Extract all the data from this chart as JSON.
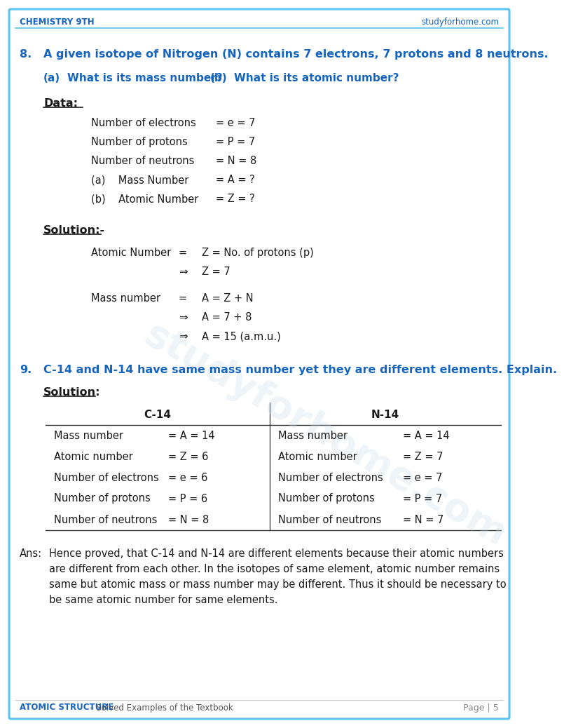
{
  "header_left": "CHEMISTRY 9TH",
  "header_right": "studyforhome.com",
  "footer_left_blue": "ATOMIC STRUCTURE",
  "footer_left_black": " – Solved Examples of the Textbook",
  "footer_right": "Page | 5",
  "bg_color": "#ffffff",
  "border_color": "#5bc4f0",
  "header_line_color": "#5bc4f0",
  "footer_line_color": "#cccccc",
  "text_color": "#1a1a1a",
  "blue_color": "#1565c0",
  "blue_header": "#1565c0",
  "watermark_color": "#c8dce8",
  "q8_num": "8.",
  "q8_text": "A given isotope of Nitrogen (N) contains 7 electrons, 7 protons and 8 neutrons.",
  "q8a_label": "(a)",
  "q8a_text": "What is its mass number?",
  "q8b_label": "(b)",
  "q8b_text": "What is its atomic number?",
  "data_label": "Data:",
  "data_rows": [
    [
      "Number of electrons",
      "= e = 7"
    ],
    [
      "Number of protons",
      "= P = 7"
    ],
    [
      "Number of neutrons",
      "= N = 8"
    ],
    [
      "(a)    Mass Number",
      "= A = ?"
    ],
    [
      "(b)    Atomic Number",
      "= Z = ?"
    ]
  ],
  "sol8_label": "Solution:-",
  "sol8_rows": [
    [
      "Atomic Number",
      "=",
      "Z = No. of protons (p)"
    ],
    [
      "",
      "⇒",
      "Z = 7"
    ],
    [
      "Mass number",
      "=",
      "A = Z + N"
    ],
    [
      "",
      "⇒",
      "A = 7 + 8"
    ],
    [
      "",
      "⇒",
      "A = 15 (a.m.u.)"
    ]
  ],
  "q9_num": "9.",
  "q9_text": "C-14 and N-14 have same mass number yet they are different elements. Explain.",
  "sol9_label": "Solution:",
  "tbl_c14": "C-14",
  "tbl_n14": "N-14",
  "tbl_left": [
    [
      "Mass number",
      "= A = 14"
    ],
    [
      "Atomic number",
      "= Z = 6"
    ],
    [
      "Number of electrons",
      "= e = 6"
    ],
    [
      "Number of protons",
      "= P = 6"
    ],
    [
      "Number of neutrons",
      "= N = 8"
    ]
  ],
  "tbl_right": [
    [
      "Mass number",
      "= A = 14"
    ],
    [
      "Atomic number",
      "= Z = 7"
    ],
    [
      "Number of electrons",
      "= e = 7"
    ],
    [
      "Number of protons",
      "= P = 7"
    ],
    [
      "Number of neutrons",
      "= N = 7"
    ]
  ],
  "ans_label": "Ans:",
  "ans_lines": [
    "Hence proved, that C-14 and N-14 are different elements because their atomic numbers",
    "are different from each other. In the isotopes of same element, atomic number remains",
    "same but atomic mass or mass number may be different. Thus it should be necessary to",
    "be same atomic number for same elements."
  ]
}
